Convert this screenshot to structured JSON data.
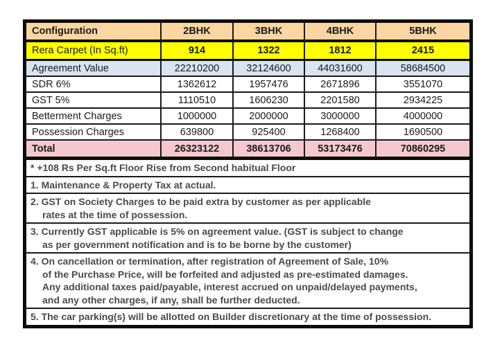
{
  "table": {
    "header_label": "Configuration",
    "columns": [
      "2BHK",
      "3BHK",
      "4BHK",
      "5BHK"
    ],
    "rows": [
      {
        "label": "Rera Carpet (In Sq.ft)",
        "values": [
          "914",
          "1322",
          "1812",
          "2415"
        ]
      },
      {
        "label": "Agreement Value",
        "values": [
          "22210200",
          "32124600",
          "44031600",
          "58684500"
        ]
      },
      {
        "label": "SDR 6%",
        "values": [
          "1362612",
          "1957476",
          "2671896",
          "3551070"
        ]
      },
      {
        "label": "GST 5%",
        "values": [
          "1110510",
          "1606230",
          "2201580",
          "2934225"
        ]
      },
      {
        "label": "Betterment Charges",
        "values": [
          "1000000",
          "2000000",
          "3000000",
          "4000000"
        ]
      },
      {
        "label": "Possession Charges",
        "values": [
          "639800",
          "925400",
          "1268400",
          "1690500"
        ]
      },
      {
        "label": "Total",
        "values": [
          "26323122",
          "38613706",
          "53173476",
          "70860295"
        ]
      }
    ]
  },
  "notes": [
    {
      "lines": [
        "* +108 Rs Per Sq.ft Floor Rise from Second habitual Floor"
      ]
    },
    {
      "lines": [
        "1. Maintenance & Property Tax at actual."
      ]
    },
    {
      "lines": [
        "2. GST on Society Charges to be paid extra by customer as per applicable",
        "rates at the time of possession."
      ]
    },
    {
      "lines": [
        "3. Currently GST applicable is 5% on agreement value. (GST is subject to change",
        "as per government notification and is to be borne by the customer)"
      ]
    },
    {
      "lines": [
        "4. On cancellation or termination, after registration of Agreement of Sale, 10%",
        "of the Purchase Price, will be forfeited and adjusted as pre-estimated damages.",
        "Any additional taxes paid/payable, interest accrued on unpaid/delayed payments,",
        "and any other charges, if any, shall be further deducted."
      ]
    },
    {
      "lines": [
        "5. The car parking(s) will be allotted on Builder discretionary at the time of possession."
      ]
    }
  ],
  "colors": {
    "header_bg": "#FBD6A2",
    "rera_row_bg": "#FFFF00",
    "agreement_row_bg": "#D8E4F0",
    "total_row_bg": "#F5C8CD",
    "border": "#0D0D0D",
    "note_text": "#4A4A4A"
  }
}
